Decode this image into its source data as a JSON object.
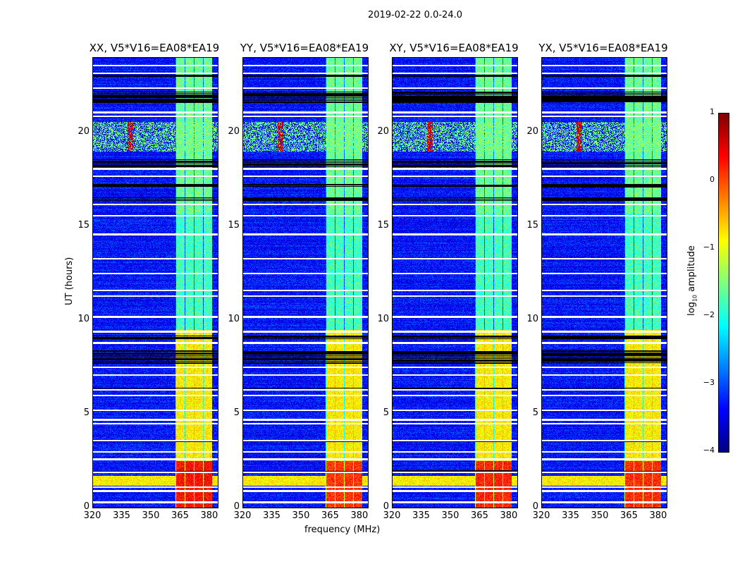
{
  "chart_data": {
    "type": "heatmap",
    "title": "2019-02-22 0.0-24.0",
    "xlabel": "frequency (MHz)",
    "ylabel": "UT (hours)",
    "xlim": [
      320,
      384
    ],
    "ylim": [
      0,
      24
    ],
    "xticks": [
      "320",
      "335",
      "350",
      "365",
      "380"
    ],
    "yticks": [
      "0",
      "5",
      "10",
      "15",
      "20"
    ],
    "panels": [
      {
        "title": "XX, V5*V16=EA08*EA19",
        "rfi_level": 0.3
      },
      {
        "title": "YY, V5*V16=EA08*EA19",
        "rfi_level": 0.1
      },
      {
        "title": "XY, V5*V16=EA08*EA19",
        "rfi_level": 0.2
      },
      {
        "title": "YX, V5*V16=EA08*EA19",
        "rfi_level": 0.15
      }
    ],
    "background_level": -3.3,
    "rfi_band_mhz": [
      362,
      381
    ],
    "rfi_band_levels_by_hour": [
      [
        0,
        2.5,
        0.2
      ],
      [
        2.5,
        9.5,
        -0.8
      ],
      [
        9.5,
        15.7,
        -1.8
      ],
      [
        15.7,
        24,
        -1.6
      ]
    ],
    "broadband_rfi_hours": [
      [
        1.2,
        1.7,
        -0.8
      ],
      [
        19.0,
        20.6,
        -1.6
      ]
    ],
    "flagged_white_hours": [
      0.3,
      0.9,
      1.1,
      1.9,
      2.6,
      3.0,
      3.6,
      4.5,
      4.7,
      5.2,
      6.0,
      6.3,
      7.1,
      7.5,
      8.8,
      9.4,
      10.2,
      11.3,
      11.6,
      12.5,
      13.3,
      14.6,
      15.6,
      16.2,
      17.7,
      18.1,
      20.9,
      21.1,
      22.4,
      23.2,
      23.6
    ],
    "flagged_black_hours": [
      [
        1.85,
        2.0
      ],
      [
        3.5,
        3.6
      ],
      [
        6.3,
        6.4
      ],
      [
        7.7,
        8.4
      ],
      [
        9.0,
        9.2
      ],
      [
        16.4,
        16.6
      ],
      [
        17.1,
        17.3
      ],
      [
        18.2,
        18.6
      ],
      [
        21.6,
        22.2
      ],
      [
        23.0,
        23.1
      ]
    ],
    "colorbar": {
      "label_prefix": "log",
      "label_sub": "10",
      "label_suffix": " amplitude",
      "ticks": [
        "1",
        "0",
        "−1",
        "−2",
        "−3",
        "−4"
      ],
      "range": [
        -4,
        1
      ],
      "colormap": "jet"
    }
  }
}
